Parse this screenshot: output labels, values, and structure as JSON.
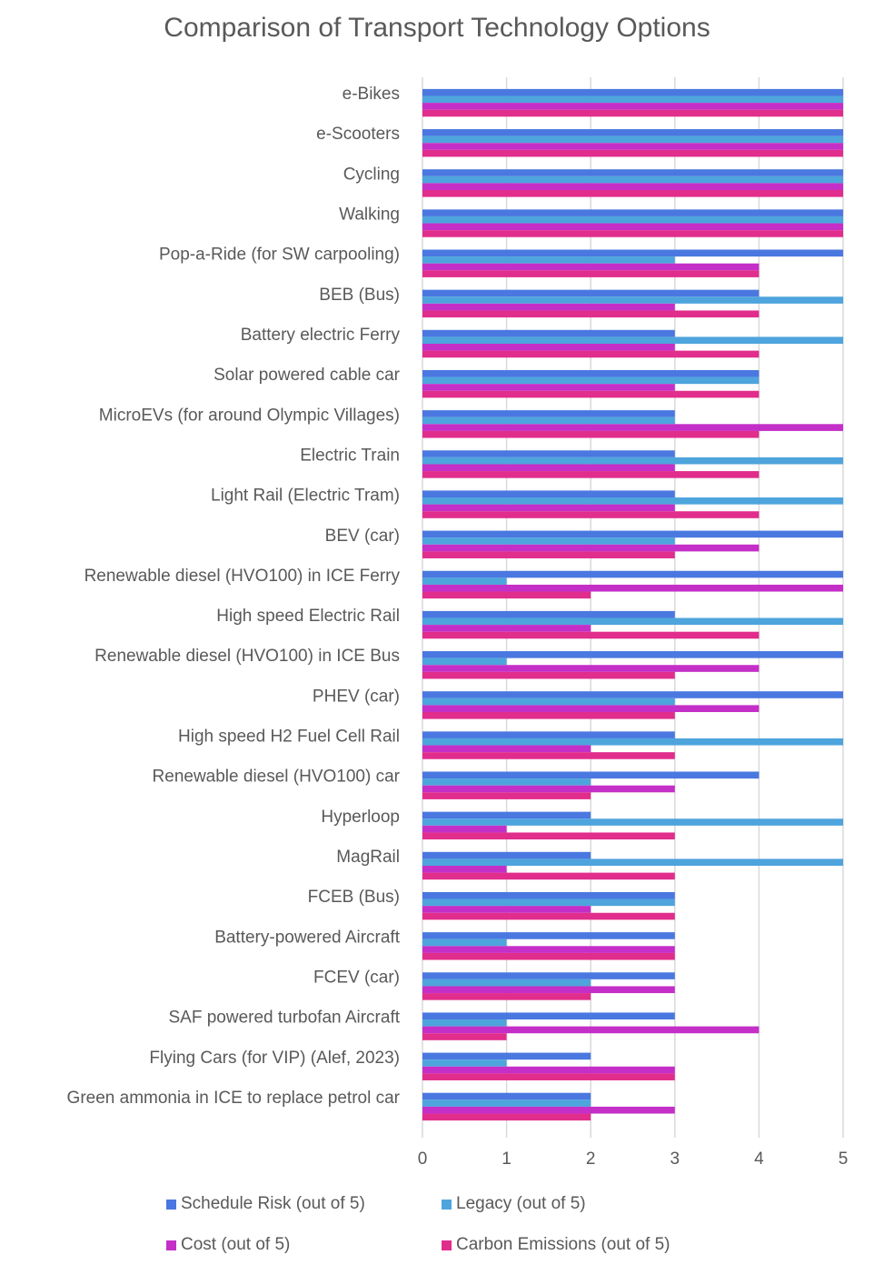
{
  "chart_data": {
    "type": "bar",
    "orientation": "horizontal",
    "title": "Comparison of Transport Technology Options",
    "xlabel": "",
    "ylabel": "",
    "xlim": [
      0,
      5
    ],
    "x_ticks": [
      "0",
      "1",
      "2",
      "3",
      "4",
      "5"
    ],
    "grid": true,
    "legend_position": "bottom",
    "categories": [
      "e-Bikes",
      "e-Scooters",
      "Cycling",
      "Walking",
      "Pop-a-Ride (for SW carpooling)",
      "BEB (Bus)",
      "Battery electric Ferry",
      "Solar powered cable car",
      "MicroEVs (for around Olympic Villages)",
      "Electric Train",
      "Light Rail (Electric Tram)",
      "BEV (car)",
      "Renewable diesel (HVO100) in ICE Ferry",
      "High speed Electric Rail",
      "Renewable diesel (HVO100) in ICE Bus",
      "PHEV (car)",
      "High speed H2 Fuel Cell Rail",
      "Renewable diesel (HVO100) car",
      "Hyperloop",
      "MagRail",
      "FCEB (Bus)",
      "Battery-powered Aircraft",
      "FCEV (car)",
      "SAF powered turbofan Aircraft",
      "Flying Cars (for VIP) (Alef, 2023)",
      "Green ammonia in ICE to replace petrol car"
    ],
    "series": [
      {
        "name": "Schedule Risk (out of 5)",
        "color": "#4a78e0",
        "values": [
          5,
          5,
          5,
          5,
          5,
          4,
          3,
          4,
          3,
          3,
          3,
          5,
          5,
          3,
          5,
          5,
          3,
          4,
          2,
          2,
          3,
          3,
          3,
          3,
          2,
          2
        ]
      },
      {
        "name": "Legacy (out of 5)",
        "color": "#4ea4dc",
        "values": [
          5,
          5,
          5,
          5,
          3,
          5,
          5,
          4,
          3,
          5,
          5,
          3,
          1,
          5,
          1,
          3,
          5,
          2,
          5,
          5,
          3,
          1,
          2,
          1,
          1,
          2
        ]
      },
      {
        "name": "Cost (out of 5)",
        "color": "#c42fc8",
        "values": [
          5,
          5,
          5,
          5,
          4,
          3,
          3,
          3,
          5,
          3,
          3,
          4,
          5,
          2,
          4,
          4,
          2,
          3,
          1,
          1,
          2,
          3,
          3,
          4,
          3,
          3
        ]
      },
      {
        "name": "Carbon Emissions (out of 5)",
        "color": "#e12d8c",
        "values": [
          5,
          5,
          5,
          5,
          4,
          4,
          4,
          4,
          4,
          4,
          4,
          3,
          2,
          4,
          3,
          3,
          3,
          2,
          3,
          3,
          3,
          3,
          2,
          1,
          3,
          2
        ]
      }
    ]
  }
}
